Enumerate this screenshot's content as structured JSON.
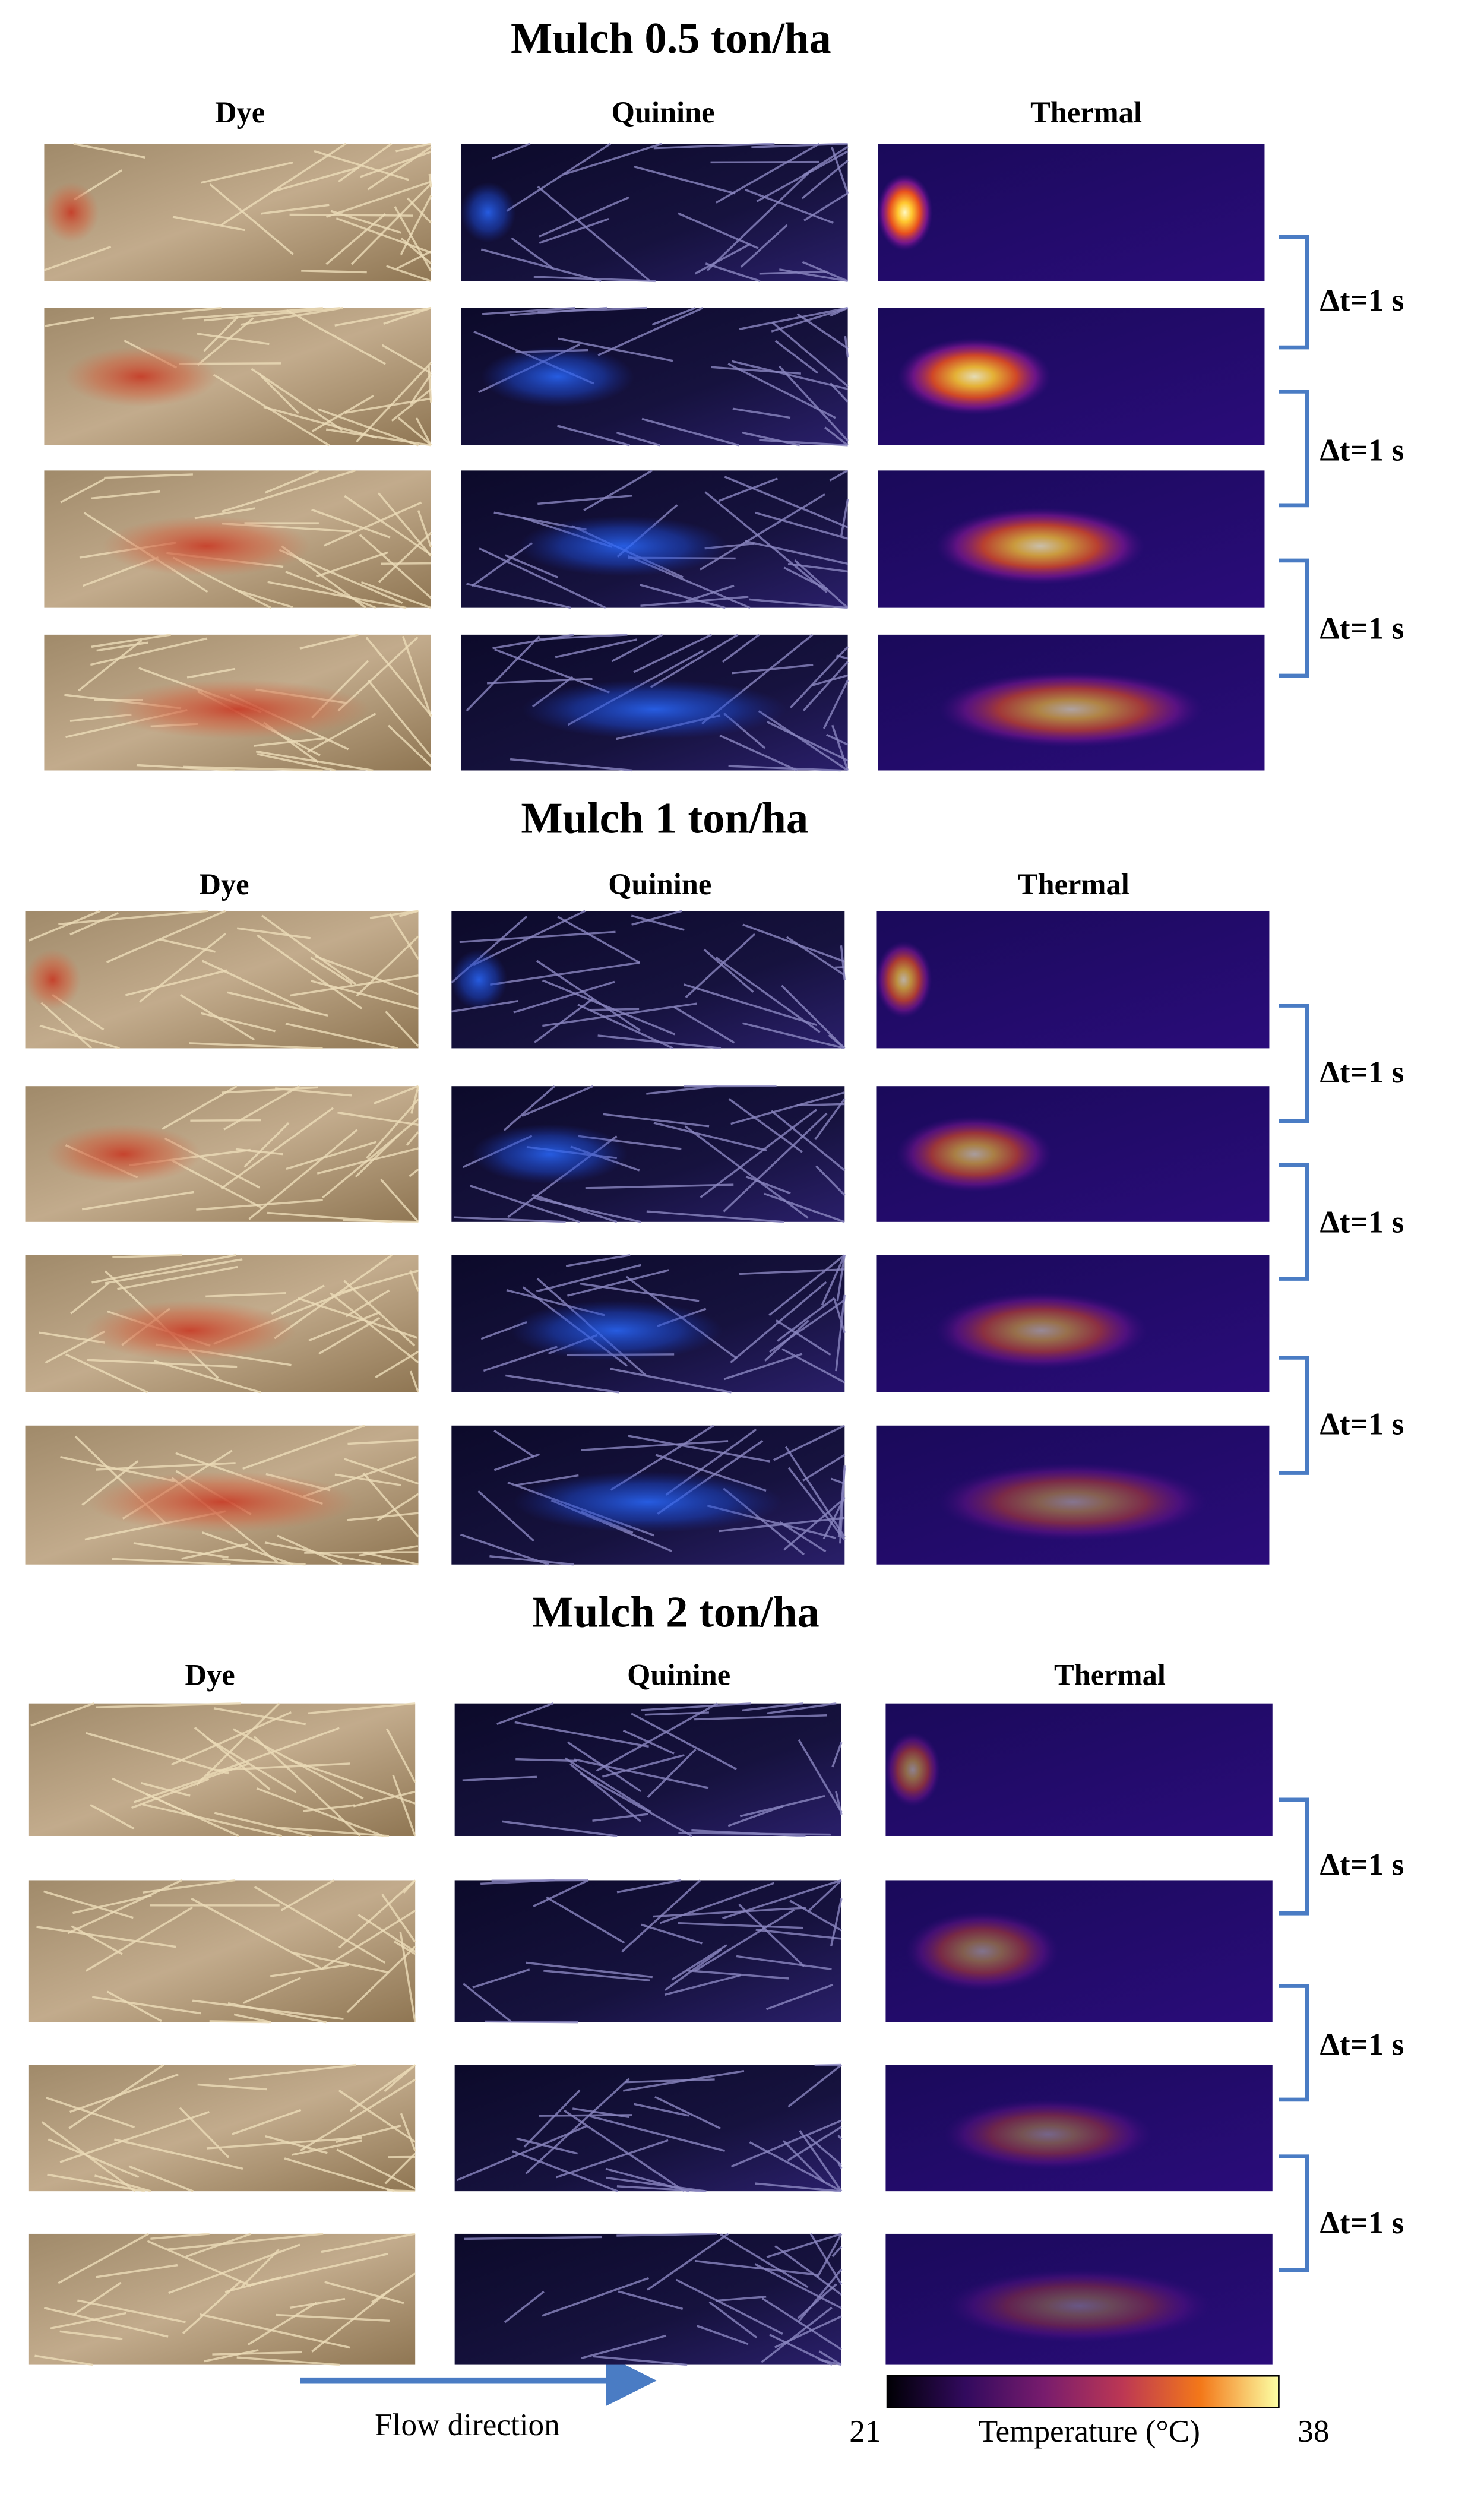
{
  "sections": [
    {
      "title": "Mulch 0.5 ton/ha",
      "columns": [
        "Dye",
        "Quinine",
        "Thermal"
      ],
      "intervals": [
        "Δt=1 s",
        "Δt=1 s",
        "Δt=1 s"
      ]
    },
    {
      "title": "Mulch 1 ton/ha",
      "columns": [
        "Dye",
        "Quinine",
        "Thermal"
      ],
      "intervals": [
        "Δt=1 s",
        "Δt=1 s",
        "Δt=1 s"
      ]
    },
    {
      "title": "Mulch 2 ton/ha",
      "columns": [
        "Dye",
        "Quinine",
        "Thermal"
      ],
      "intervals": [
        "Δt=1 s",
        "Δt=1 s",
        "Δt=1 s"
      ]
    }
  ],
  "flow_label": "Flow direction",
  "colorbar": {
    "min": "21",
    "label": "Temperature (°C)",
    "max": "38"
  }
}
